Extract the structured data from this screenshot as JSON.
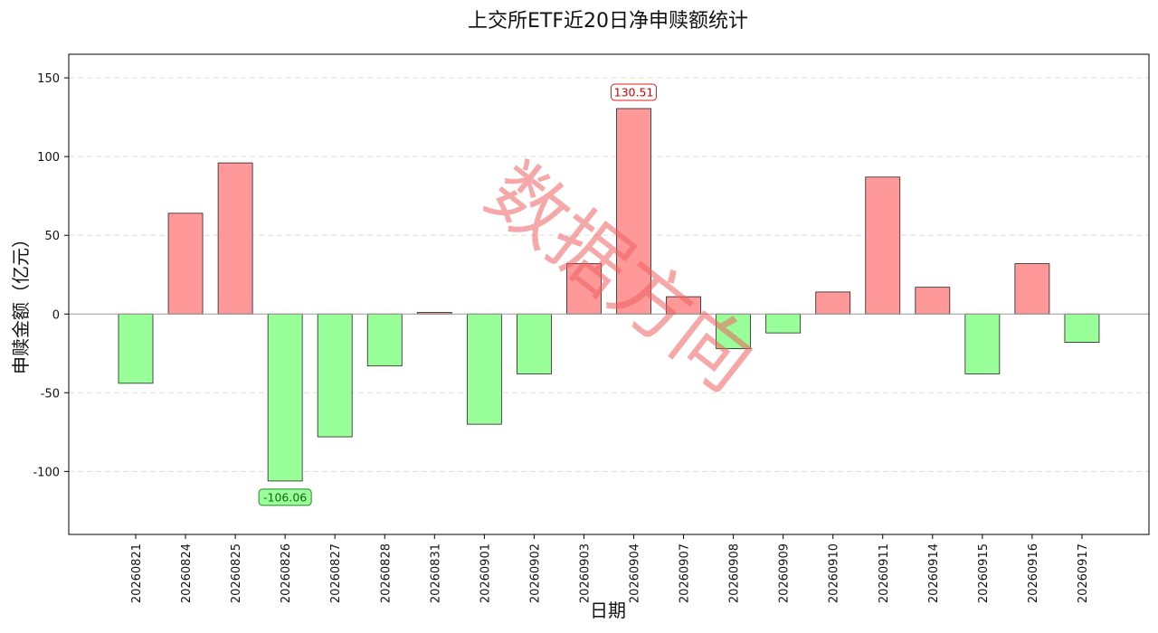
{
  "chart_data": {
    "type": "bar",
    "title": "上交所ETF近20日净申赎额统计",
    "xlabel": "日期",
    "ylabel": "申赎金额（亿元）",
    "ylim": [
      -140,
      165
    ],
    "yticks": [
      -100,
      -50,
      0,
      50,
      100,
      150
    ],
    "grid": "horizontal-dashed",
    "categories": [
      "20260821",
      "20260824",
      "20260825",
      "20260826",
      "20260827",
      "20260828",
      "20260831",
      "20260901",
      "20260902",
      "20260903",
      "20260904",
      "20260907",
      "20260908",
      "20260909",
      "20260910",
      "20260911",
      "20260914",
      "20260915",
      "20260916",
      "20260917"
    ],
    "values": [
      -44,
      64,
      96,
      -106.06,
      -78,
      -33,
      1,
      -70,
      -38,
      32,
      130.51,
      11,
      -22,
      -12,
      14,
      87,
      17,
      -38,
      32,
      -18
    ],
    "annotations": [
      {
        "category": "20260904",
        "text": "130.51",
        "kind": "max"
      },
      {
        "category": "20260826",
        "text": "-106.06",
        "kind": "min"
      }
    ],
    "colors": {
      "positive": "#ff9999",
      "negative": "#99ff99",
      "max_label_border": "#dd2222",
      "max_label_text": "#cc0000",
      "min_label_border": "#228822",
      "min_label_text": "#116611"
    }
  },
  "watermark": {
    "text": "数据方向",
    "color": "#f06060"
  }
}
